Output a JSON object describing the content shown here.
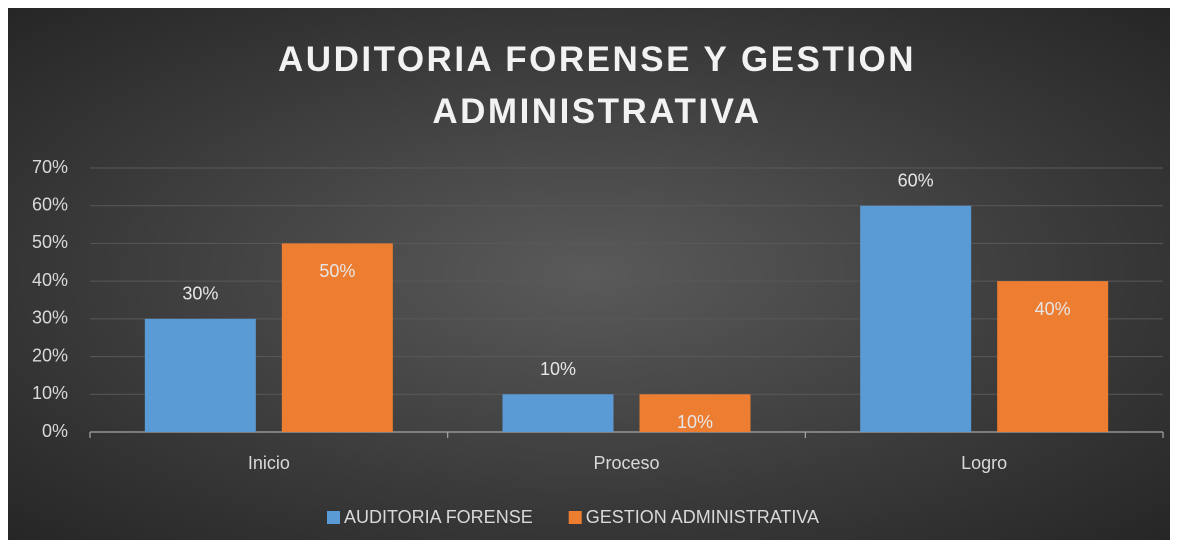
{
  "chart_data": {
    "type": "bar",
    "title": "AUDITORIA FORENSE Y GESTION ADMINISTRATIVA",
    "categories": [
      "Inicio",
      "Proceso",
      "Logro"
    ],
    "series": [
      {
        "name": "AUDITORIA FORENSE",
        "color": "#5b9bd5",
        "values": [
          30,
          10,
          60
        ],
        "value_labels": [
          "30%",
          "10%",
          "60%"
        ]
      },
      {
        "name": "GESTION ADMINISTRATIVA",
        "color": "#ed7d31",
        "values": [
          50,
          10,
          40
        ],
        "value_labels": [
          "50%",
          "10%",
          "40%"
        ]
      }
    ],
    "ylim": [
      0,
      70
    ],
    "yticks": [
      {
        "value": 0,
        "label": "0%"
      },
      {
        "value": 10,
        "label": "10%"
      },
      {
        "value": 20,
        "label": "20%"
      },
      {
        "value": 30,
        "label": "30%"
      },
      {
        "value": 40,
        "label": "40%"
      },
      {
        "value": 50,
        "label": "50%"
      },
      {
        "value": 60,
        "label": "60%"
      },
      {
        "value": 70,
        "label": "70%"
      }
    ],
    "grid": true,
    "legend": "bottom"
  }
}
